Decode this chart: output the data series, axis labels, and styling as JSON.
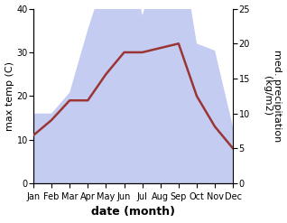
{
  "months": [
    "Jan",
    "Feb",
    "Mar",
    "Apr",
    "May",
    "Jun",
    "Jul",
    "Aug",
    "Sep",
    "Oct",
    "Nov",
    "Dec"
  ],
  "max_temp_C": [
    11,
    14.5,
    19,
    19,
    25,
    30,
    30,
    31,
    32,
    20,
    13,
    8
  ],
  "precipitation_mm": [
    10,
    10,
    13,
    22,
    30,
    38,
    24,
    32,
    36,
    20,
    19,
    8
  ],
  "temp_color": "#9b3535",
  "precip_fill_color": "#b0bcee",
  "precip_fill_alpha": 0.75,
  "temp_ylim": [
    0,
    40
  ],
  "precip_ylim": [
    0,
    25
  ],
  "temp_yticks": [
    0,
    10,
    20,
    30,
    40
  ],
  "precip_yticks": [
    0,
    5,
    10,
    15,
    20,
    25
  ],
  "xlabel": "date (month)",
  "ylabel_left": "max temp (C)",
  "ylabel_right": "med. precipitation\n(kg/m2)",
  "tick_fontsize": 7,
  "label_fontsize": 8,
  "xlabel_fontsize": 9,
  "linewidth": 1.8
}
